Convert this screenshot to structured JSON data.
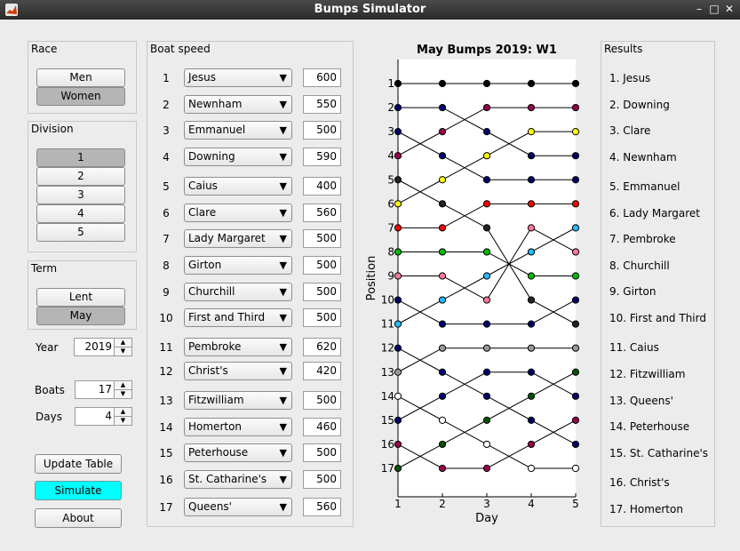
{
  "window": {
    "title": "Bumps Simulator"
  },
  "race": {
    "title": "Race",
    "options": [
      "Men",
      "Women"
    ],
    "selected": "Women"
  },
  "division": {
    "title": "Division",
    "options": [
      "1",
      "2",
      "3",
      "4",
      "5"
    ],
    "selected": "1"
  },
  "term": {
    "title": "Term",
    "options": [
      "Lent",
      "May"
    ],
    "selected": "May"
  },
  "year": {
    "label": "Year",
    "value": "2019"
  },
  "boats": {
    "label": "Boats",
    "value": "17"
  },
  "days": {
    "label": "Days",
    "value": "4"
  },
  "actions": {
    "update": "Update Table",
    "simulate": "Simulate",
    "about": "About"
  },
  "boat_speed": {
    "title": "Boat speed",
    "rows": [
      {
        "pos": "1",
        "crew": "Jesus",
        "speed": "600"
      },
      {
        "pos": "2",
        "crew": "Newnham",
        "speed": "550"
      },
      {
        "pos": "3",
        "crew": "Emmanuel",
        "speed": "500"
      },
      {
        "pos": "4",
        "crew": "Downing",
        "speed": "590"
      },
      {
        "pos": "5",
        "crew": "Caius",
        "speed": "400"
      },
      {
        "pos": "6",
        "crew": "Clare",
        "speed": "560"
      },
      {
        "pos": "7",
        "crew": "Lady Margaret",
        "speed": "500"
      },
      {
        "pos": "8",
        "crew": "Girton",
        "speed": "500"
      },
      {
        "pos": "9",
        "crew": "Churchill",
        "speed": "500"
      },
      {
        "pos": "10",
        "crew": "First and Third",
        "speed": "500"
      },
      {
        "pos": "11",
        "crew": "Pembroke",
        "speed": "620"
      },
      {
        "pos": "12",
        "crew": "Christ's",
        "speed": "420"
      },
      {
        "pos": "13",
        "crew": "Fitzwilliam",
        "speed": "500"
      },
      {
        "pos": "14",
        "crew": "Homerton",
        "speed": "460"
      },
      {
        "pos": "15",
        "crew": "Peterhouse",
        "speed": "500"
      },
      {
        "pos": "16",
        "crew": "St. Catharine's",
        "speed": "500"
      },
      {
        "pos": "17",
        "crew": "Queens'",
        "speed": "560"
      }
    ]
  },
  "results": {
    "title": "Results",
    "items": [
      "1. Jesus",
      "2. Downing",
      "3. Clare",
      "4. Newnham",
      "5. Emmanuel",
      "6. Lady Margaret",
      "7. Pembroke",
      "8. Churchill",
      "9. Girton",
      "10. First and Third",
      "11. Caius",
      "12. Fitzwilliam",
      "13. Queens'",
      "14. Peterhouse",
      "15. St. Catharine's",
      "16. Christ's",
      "17. Homerton"
    ]
  },
  "chart_data": {
    "type": "line",
    "title": "May Bumps 2019: W1",
    "xlabel": "Day",
    "ylabel": "Position",
    "x": [
      1,
      2,
      3,
      4,
      5
    ],
    "xlim": [
      1,
      5
    ],
    "ylim": [
      17,
      1
    ],
    "y_reversed": true,
    "yticks": [
      1,
      2,
      3,
      4,
      5,
      6,
      7,
      8,
      9,
      10,
      11,
      12,
      13,
      14,
      15,
      16,
      17
    ],
    "grid": false,
    "series": [
      {
        "color": "#000000",
        "values": [
          1,
          1,
          1,
          1,
          1
        ]
      },
      {
        "color": "#000066",
        "values": [
          2,
          2,
          3,
          4,
          4
        ]
      },
      {
        "color": "#000066",
        "values": [
          3,
          4,
          5,
          5,
          5
        ]
      },
      {
        "color": "#99004d",
        "values": [
          4,
          3,
          2,
          2,
          2
        ]
      },
      {
        "color": "#222222",
        "values": [
          5,
          6,
          7,
          10,
          11
        ]
      },
      {
        "color": "#ffff00",
        "values": [
          6,
          5,
          4,
          3,
          3
        ]
      },
      {
        "color": "#ff0000",
        "values": [
          7,
          7,
          6,
          6,
          6
        ]
      },
      {
        "color": "#00bb00",
        "values": [
          8,
          8,
          8,
          9,
          9
        ]
      },
      {
        "color": "#ff7799",
        "values": [
          9,
          9,
          10,
          7,
          8
        ]
      },
      {
        "color": "#000066",
        "values": [
          10,
          11,
          11,
          11,
          10
        ]
      },
      {
        "color": "#22bbff",
        "values": [
          11,
          10,
          9,
          8,
          7
        ]
      },
      {
        "color": "#000066",
        "values": [
          12,
          13,
          14,
          15,
          16
        ]
      },
      {
        "color": "#999999",
        "values": [
          13,
          12,
          12,
          12,
          12
        ]
      },
      {
        "color": "#ffffff",
        "values": [
          14,
          15,
          16,
          17,
          17
        ]
      },
      {
        "color": "#000066",
        "values": [
          15,
          14,
          13,
          13,
          14
        ]
      },
      {
        "color": "#99004d",
        "values": [
          16,
          17,
          17,
          16,
          15
        ]
      },
      {
        "color": "#005500",
        "values": [
          17,
          16,
          15,
          14,
          13
        ]
      }
    ]
  }
}
